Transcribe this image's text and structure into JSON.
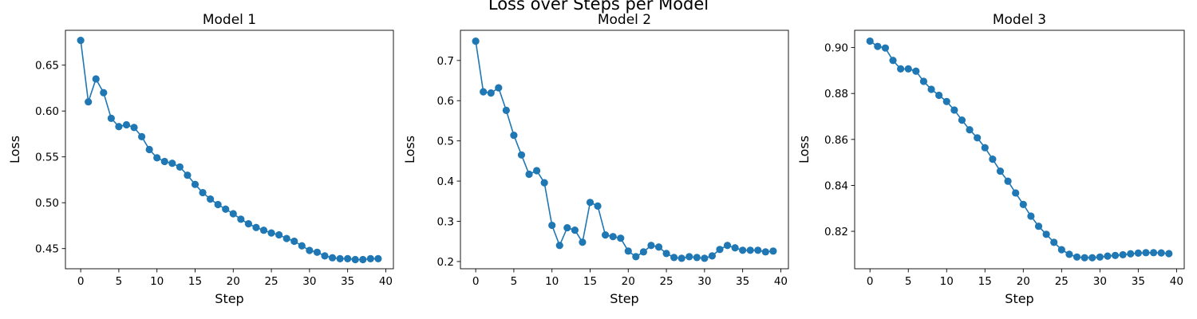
{
  "figure": {
    "suptitle": "Loss over Steps per Model"
  },
  "chart_data": [
    {
      "type": "line",
      "title": "Model 1",
      "xlabel": "Step",
      "ylabel": "Loss",
      "xlim": [
        -2,
        41
      ],
      "ylim": [
        0.428,
        0.688
      ],
      "xticks": [
        0,
        5,
        10,
        15,
        20,
        25,
        30,
        35,
        40
      ],
      "xtick_labels": [
        "0",
        "5",
        "10",
        "15",
        "20",
        "25",
        "30",
        "35",
        "40"
      ],
      "yticks": [
        0.45,
        0.5,
        0.55,
        0.6,
        0.65
      ],
      "ytick_labels": [
        "0.45",
        "0.50",
        "0.55",
        "0.60",
        "0.65"
      ],
      "grid": false,
      "color": "#1f77b4",
      "marker": "circle",
      "series": [
        {
          "x": [
            0,
            1,
            2,
            3,
            4,
            5,
            6,
            7,
            8,
            9,
            10,
            11,
            12,
            13,
            14,
            15,
            16,
            17,
            18,
            19,
            20,
            21,
            22,
            23,
            24,
            25,
            26,
            27,
            28,
            29,
            30,
            31,
            32,
            33,
            34,
            35,
            36,
            37,
            38,
            39
          ],
          "values": [
            0.677,
            0.61,
            0.635,
            0.62,
            0.592,
            0.583,
            0.585,
            0.582,
            0.572,
            0.558,
            0.549,
            0.545,
            0.543,
            0.539,
            0.53,
            0.52,
            0.511,
            0.504,
            0.498,
            0.493,
            0.488,
            0.482,
            0.477,
            0.473,
            0.47,
            0.467,
            0.465,
            0.461,
            0.458,
            0.453,
            0.448,
            0.446,
            0.442,
            0.44,
            0.439,
            0.439,
            0.438,
            0.438,
            0.439,
            0.439
          ]
        }
      ]
    },
    {
      "type": "line",
      "title": "Model 2",
      "xlabel": "Step",
      "ylabel": "Loss",
      "xlim": [
        -2,
        41
      ],
      "ylim": [
        0.182,
        0.775
      ],
      "xticks": [
        0,
        5,
        10,
        15,
        20,
        25,
        30,
        35,
        40
      ],
      "xtick_labels": [
        "0",
        "5",
        "10",
        "15",
        "20",
        "25",
        "30",
        "35",
        "40"
      ],
      "yticks": [
        0.2,
        0.3,
        0.4,
        0.5,
        0.6,
        0.7
      ],
      "ytick_labels": [
        "0.2",
        "0.3",
        "0.4",
        "0.5",
        "0.6",
        "0.7"
      ],
      "grid": false,
      "color": "#1f77b4",
      "marker": "circle",
      "series": [
        {
          "x": [
            0,
            1,
            2,
            3,
            4,
            5,
            6,
            7,
            8,
            9,
            10,
            11,
            12,
            13,
            14,
            15,
            16,
            17,
            18,
            19,
            20,
            21,
            22,
            23,
            24,
            25,
            26,
            27,
            28,
            29,
            30,
            31,
            32,
            33,
            34,
            35,
            36,
            37,
            38,
            39
          ],
          "values": [
            0.748,
            0.622,
            0.619,
            0.632,
            0.576,
            0.514,
            0.465,
            0.417,
            0.426,
            0.396,
            0.29,
            0.24,
            0.284,
            0.278,
            0.248,
            0.347,
            0.338,
            0.266,
            0.262,
            0.258,
            0.226,
            0.212,
            0.224,
            0.24,
            0.236,
            0.22,
            0.21,
            0.208,
            0.212,
            0.21,
            0.208,
            0.214,
            0.23,
            0.24,
            0.234,
            0.228,
            0.228,
            0.228,
            0.224,
            0.226
          ]
        }
      ]
    },
    {
      "type": "line",
      "title": "Model 3",
      "xlabel": "Step",
      "ylabel": "Loss",
      "xlim": [
        -2,
        41
      ],
      "ylim": [
        0.8037,
        0.9075
      ],
      "xticks": [
        0,
        5,
        10,
        15,
        20,
        25,
        30,
        35,
        40
      ],
      "xtick_labels": [
        "0",
        "5",
        "10",
        "15",
        "20",
        "25",
        "30",
        "35",
        "40"
      ],
      "yticks": [
        0.82,
        0.84,
        0.86,
        0.88,
        0.9
      ],
      "ytick_labels": [
        "0.82",
        "0.84",
        "0.86",
        "0.88",
        "0.90"
      ],
      "grid": false,
      "color": "#1f77b4",
      "marker": "circle",
      "series": [
        {
          "x": [
            0,
            1,
            2,
            3,
            4,
            5,
            6,
            7,
            8,
            9,
            10,
            11,
            12,
            13,
            14,
            15,
            16,
            17,
            18,
            19,
            20,
            21,
            22,
            23,
            24,
            25,
            26,
            27,
            28,
            29,
            30,
            31,
            32,
            33,
            34,
            35,
            36,
            37,
            38,
            39
          ],
          "values": [
            0.9028,
            0.9005,
            0.8998,
            0.8944,
            0.8907,
            0.8907,
            0.8897,
            0.8853,
            0.8818,
            0.8792,
            0.8765,
            0.8728,
            0.8684,
            0.8642,
            0.8607,
            0.8564,
            0.8514,
            0.8462,
            0.8418,
            0.8367,
            0.8317,
            0.8266,
            0.8222,
            0.8187,
            0.8152,
            0.812,
            0.81,
            0.8088,
            0.8085,
            0.8085,
            0.8088,
            0.8092,
            0.8095,
            0.8098,
            0.8102,
            0.8105,
            0.8107,
            0.8107,
            0.8106,
            0.8103
          ]
        }
      ]
    }
  ]
}
